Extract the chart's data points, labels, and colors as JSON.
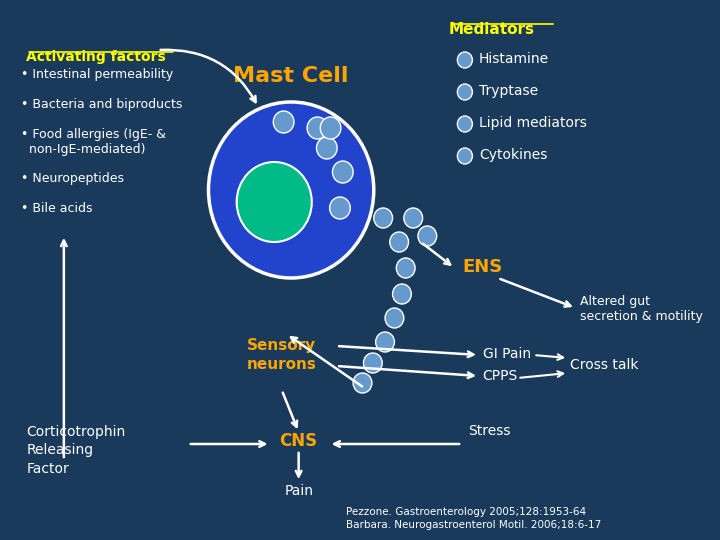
{
  "bg_color": "#1a3a5c",
  "title_mediators": "Mediators",
  "title_activating": "Activating factors",
  "mast_cell_label": "Mast Cell",
  "activating_bullets": [
    "• Intestinal permeability",
    "• Bacteria and biproducts",
    "• Food allergies (IgE- &\n  non-IgE-mediated)",
    "• Neuropeptides",
    "• Bile acids"
  ],
  "mediator_bullets": [
    "Histamine",
    "Tryptase",
    "Lipid mediators",
    "Cytokines"
  ],
  "orange_color": "#FFA500",
  "yellow_color": "#FFFF00",
  "white_color": "#FFFFFF",
  "blue_circle_color": "#2244CC",
  "green_nucleus_color": "#00BB88",
  "granule_color": "#6699CC",
  "text_color": "#FFFFFF",
  "ENS_label": "ENS",
  "sensory_label": "Sensory\nneurons",
  "CNS_label": "CNS",
  "pain_label": "Pain",
  "stress_label": "Stress",
  "cortico_label": "Corticotrophin\nReleasing\nFactor",
  "gi_pain_label": "GI Pain",
  "cpps_label": "CPPS",
  "crosstalk_label": "Cross talk",
  "altered_label": "Altered gut\nsecretion & motility",
  "ref1": "Pezzone. Gastroenterology 2005;128:1953-64",
  "ref2": "Barbara. Neurogastroenterol Motil. 2006;18:6-17"
}
